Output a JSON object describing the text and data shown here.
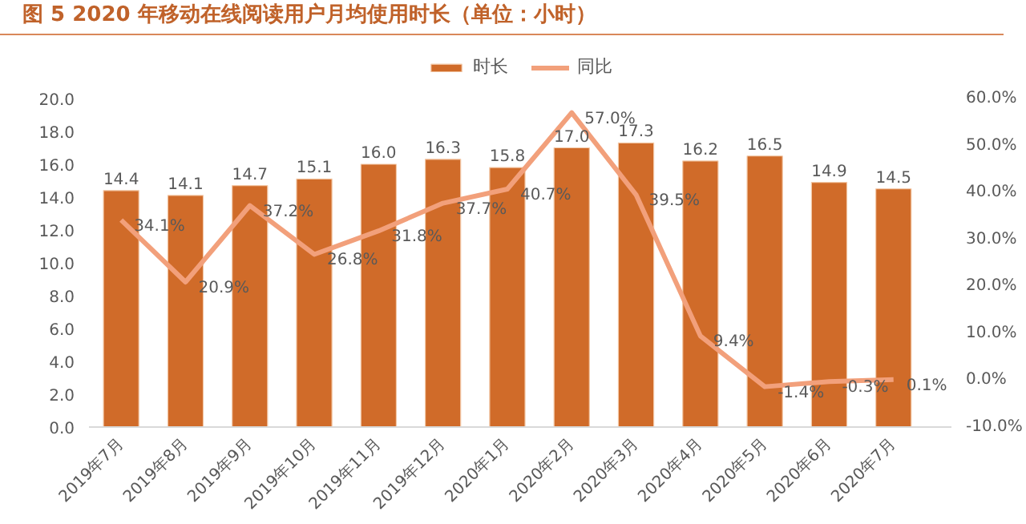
{
  "chart_data": {
    "type": "bar",
    "title": "图 5 2020 年移动在线阅读用户月均使用时长（单位：小时）",
    "categories": [
      "2019年7月",
      "2019年8月",
      "2019年9月",
      "2019年10月",
      "2019年11月",
      "2019年12月",
      "2020年1月",
      "2020年2月",
      "2020年3月",
      "2020年4月",
      "2020年5月",
      "2020年6月",
      "2020年7月"
    ],
    "series": [
      {
        "name": "时长",
        "color": "#d06b29",
        "values": [
          14.4,
          14.1,
          14.7,
          15.1,
          16.0,
          16.3,
          15.8,
          17.0,
          17.3,
          16.2,
          16.5,
          14.9,
          14.5
        ],
        "value_labels": [
          "14.4",
          "14.1",
          "14.7",
          "15.1",
          "16.0",
          "16.3",
          "15.8",
          "17.0",
          "17.3",
          "16.2",
          "16.5",
          "14.9",
          "14.5"
        ]
      },
      {
        "name": "同比",
        "type": "line",
        "axis": "y2",
        "color": "#f2a07b",
        "values": [
          34.1,
          20.9,
          37.2,
          26.8,
          31.8,
          37.7,
          40.7,
          57.0,
          39.5,
          9.4,
          -1.4,
          -0.3,
          0.1
        ],
        "value_labels": [
          "34.1%",
          "20.9%",
          "37.2%",
          "26.8%",
          "31.8%",
          "37.7%",
          "40.7%",
          "57.0%",
          "39.5%",
          "9.4%",
          "-1.4%",
          "-0.3%",
          "0.1%"
        ]
      }
    ],
    "ylim": [
      0,
      20
    ],
    "yticks": [
      {
        "value": 0,
        "label": "0.0"
      },
      {
        "value": 2,
        "label": "2.0"
      },
      {
        "value": 4,
        "label": "4.0"
      },
      {
        "value": 6,
        "label": "6.0"
      },
      {
        "value": 8,
        "label": "8.0"
      },
      {
        "value": 10,
        "label": "10.0"
      },
      {
        "value": 12,
        "label": "12.0"
      },
      {
        "value": 14,
        "label": "14.0"
      },
      {
        "value": 16,
        "label": "16.0"
      },
      {
        "value": 18,
        "label": "18.0"
      },
      {
        "value": 20,
        "label": "20.0"
      }
    ],
    "y2lim": [
      -10,
      60
    ],
    "y2ticks": [
      {
        "value": -10,
        "label": "-10.0%"
      },
      {
        "value": 0,
        "label": "0.0%"
      },
      {
        "value": 10,
        "label": "10.0%"
      },
      {
        "value": 20,
        "label": "20.0%"
      },
      {
        "value": 30,
        "label": "30.0%"
      },
      {
        "value": 40,
        "label": "40.0%"
      },
      {
        "value": 50,
        "label": "50.0%"
      },
      {
        "value": 60,
        "label": "60.0%"
      }
    ],
    "legend": "top",
    "grid": false
  }
}
